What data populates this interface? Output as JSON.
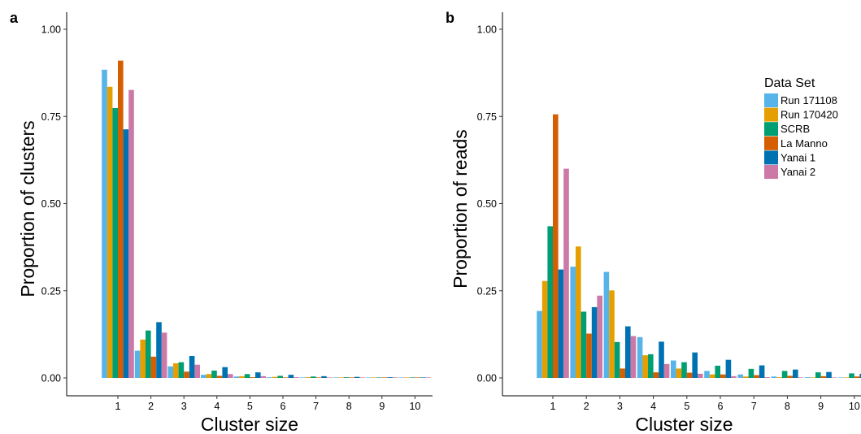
{
  "chart_data": [
    {
      "panel_label": "a",
      "type": "bar",
      "xlabel": "Cluster size",
      "ylabel": "Proportion of clusters",
      "ylim": [
        0,
        1.05
      ],
      "yticks": [
        "0.00",
        "0.25",
        "0.50",
        "0.75",
        "1.00"
      ],
      "categories": [
        "1",
        "2",
        "3",
        "4",
        "5",
        "6",
        "7",
        "8",
        "9",
        "10"
      ],
      "grid": false,
      "series": [
        {
          "name": "Run 171108",
          "color": "#56B4E9",
          "values": [
            0.884,
            0.078,
            0.033,
            0.009,
            0.004,
            0.002,
            0.001,
            0.001,
            0.0005,
            0.0003
          ]
        },
        {
          "name": "Run 170420",
          "color": "#E69F00",
          "values": [
            0.835,
            0.11,
            0.042,
            0.011,
            0.005,
            0.003,
            0.002,
            0.001,
            0.001,
            0.0005
          ]
        },
        {
          "name": "SCRB",
          "color": "#009E73",
          "values": [
            0.774,
            0.136,
            0.045,
            0.021,
            0.011,
            0.006,
            0.004,
            0.002,
            0.001,
            0.001
          ]
        },
        {
          "name": "La Manno",
          "color": "#D55E00",
          "values": [
            0.91,
            0.061,
            0.018,
            0.006,
            0.002,
            0.001,
            0.001,
            0.0005,
            0.0003,
            0.0002
          ]
        },
        {
          "name": "Yanai 1",
          "color": "#0072B2",
          "values": [
            0.713,
            0.16,
            0.063,
            0.031,
            0.016,
            0.009,
            0.005,
            0.003,
            0.002,
            0.001
          ]
        },
        {
          "name": "Yanai 2",
          "color": "#CC79A7",
          "values": [
            0.826,
            0.13,
            0.038,
            0.011,
            0.005,
            0.002,
            0.001,
            0.001,
            0.0005,
            0.0003
          ]
        }
      ]
    },
    {
      "panel_label": "b",
      "type": "bar",
      "xlabel": "Cluster size",
      "ylabel": "Proportion of reads",
      "ylim": [
        0,
        1.05
      ],
      "yticks": [
        "0.00",
        "0.25",
        "0.50",
        "0.75",
        "1.00"
      ],
      "categories": [
        "1",
        "2",
        "3",
        "4",
        "5",
        "6",
        "7",
        "8",
        "9",
        "10"
      ],
      "grid": false,
      "legend": {
        "title": "Data Set",
        "position": "top-right"
      },
      "series": [
        {
          "name": "Run 171108",
          "color": "#56B4E9",
          "values": [
            0.192,
            0.319,
            0.304,
            0.117,
            0.05,
            0.02,
            0.01,
            0.004,
            0.002,
            0.001
          ]
        },
        {
          "name": "Run 170420",
          "color": "#E69F00",
          "values": [
            0.278,
            0.377,
            0.251,
            0.065,
            0.027,
            0.01,
            0.004,
            0.002,
            0.001,
            0.0005
          ]
        },
        {
          "name": "SCRB",
          "color": "#009E73",
          "values": [
            0.435,
            0.19,
            0.103,
            0.068,
            0.045,
            0.035,
            0.026,
            0.02,
            0.016,
            0.013
          ]
        },
        {
          "name": "La Manno",
          "color": "#D55E00",
          "values": [
            0.756,
            0.127,
            0.027,
            0.016,
            0.015,
            0.01,
            0.008,
            0.006,
            0.005,
            0.004
          ]
        },
        {
          "name": "Yanai 1",
          "color": "#0072B2",
          "values": [
            0.311,
            0.203,
            0.148,
            0.104,
            0.073,
            0.052,
            0.036,
            0.024,
            0.017,
            0.012
          ]
        },
        {
          "name": "Yanai 2",
          "color": "#CC79A7",
          "values": [
            0.6,
            0.236,
            0.12,
            0.04,
            0.012,
            0.005,
            0.002,
            0.001,
            0.001,
            0.0005
          ]
        }
      ]
    }
  ]
}
